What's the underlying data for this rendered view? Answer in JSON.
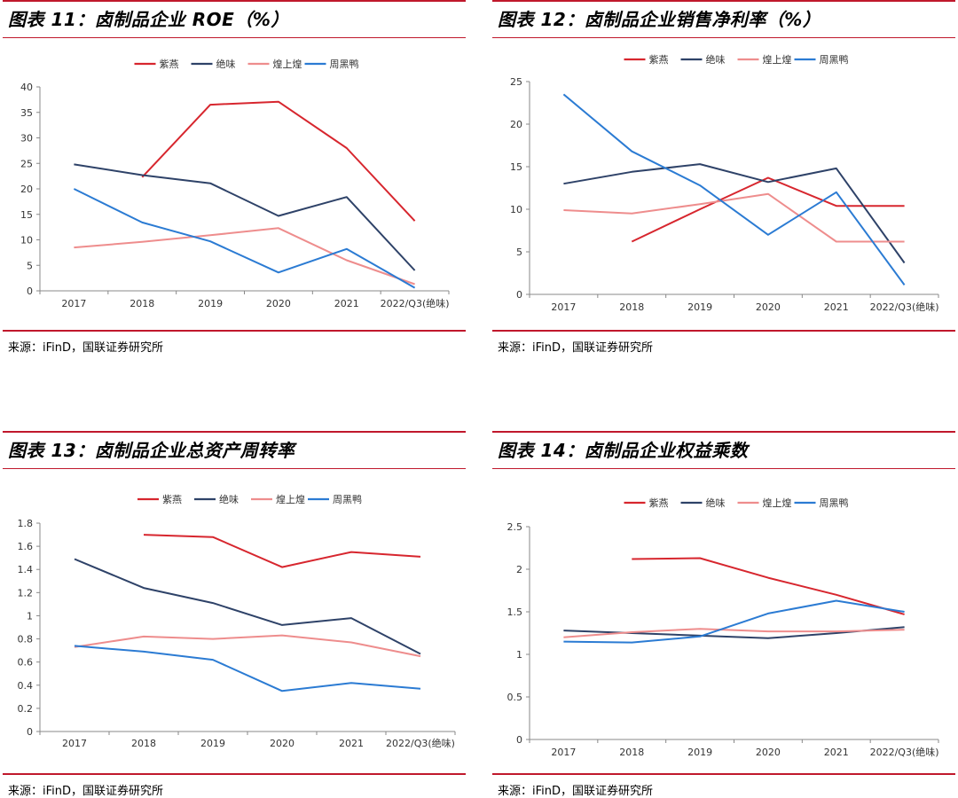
{
  "legend_names": [
    "紫燕",
    "绝味",
    "煌上煌",
    "周黑鸭"
  ],
  "colors": {
    "紫燕": "#d7262e",
    "绝味": "#2e4268",
    "煌上煌": "#ee8d8d",
    "周黑鸭": "#2b7bd3",
    "rule": "#c0182c"
  },
  "categories": [
    "2017",
    "2018",
    "2019",
    "2020",
    "2021",
    "2022/Q3(绝味)"
  ],
  "source_text": "来源：iFinD，国联证券研究所",
  "chart_data": [
    {
      "type": "line",
      "title": "图表 11：卤制品企业 ROE（%）",
      "categories": [
        "2017",
        "2018",
        "2019",
        "2020",
        "2021",
        "2022/Q3(绝味)"
      ],
      "yticks": [
        "0",
        "5",
        "10",
        "15",
        "20",
        "25",
        "30",
        "35",
        "40"
      ],
      "ylim": [
        0,
        40
      ],
      "legend": "top",
      "series": [
        {
          "name": "紫燕",
          "values": [
            null,
            22.3,
            36.5,
            37.1,
            28.0,
            13.7
          ]
        },
        {
          "name": "绝味",
          "values": [
            24.8,
            22.7,
            21.1,
            14.7,
            18.4,
            4.0
          ]
        },
        {
          "name": "煌上煌",
          "values": [
            8.5,
            9.6,
            10.9,
            12.3,
            6.0,
            1.3
          ]
        },
        {
          "name": "周黑鸭",
          "values": [
            20.0,
            13.4,
            9.7,
            3.6,
            8.2,
            0.6
          ]
        }
      ]
    },
    {
      "type": "line",
      "title": "图表 12：卤制品企业销售净利率（%）",
      "categories": [
        "2017",
        "2018",
        "2019",
        "2020",
        "2021",
        "2022/Q3(绝味)"
      ],
      "yticks": [
        "0",
        "5",
        "10",
        "15",
        "20",
        "25"
      ],
      "ylim": [
        0,
        25
      ],
      "legend": "top",
      "series": [
        {
          "name": "紫燕",
          "values": [
            null,
            6.2,
            10.0,
            13.7,
            10.4,
            10.4
          ]
        },
        {
          "name": "绝味",
          "values": [
            13.0,
            14.4,
            15.3,
            13.2,
            14.8,
            3.7
          ]
        },
        {
          "name": "煌上煌",
          "values": [
            9.9,
            9.5,
            10.6,
            11.8,
            6.2,
            6.2
          ]
        },
        {
          "name": "周黑鸭",
          "values": [
            23.5,
            16.8,
            12.8,
            7.0,
            12.0,
            1.1
          ]
        }
      ]
    },
    {
      "type": "line",
      "title": "图表 13：卤制品企业总资产周转率",
      "categories": [
        "2017",
        "2018",
        "2019",
        "2020",
        "2021",
        "2022/Q3(绝味)"
      ],
      "yticks": [
        "0",
        "0.2",
        "0.4",
        "0.6",
        "0.8",
        "1",
        "1.2",
        "1.4",
        "1.6",
        "1.8"
      ],
      "ylim": [
        0,
        1.8
      ],
      "legend": "top",
      "series": [
        {
          "name": "紫燕",
          "values": [
            null,
            1.7,
            1.68,
            1.42,
            1.55,
            1.51
          ]
        },
        {
          "name": "绝味",
          "values": [
            1.49,
            1.24,
            1.11,
            0.92,
            0.98,
            0.67
          ]
        },
        {
          "name": "煌上煌",
          "values": [
            0.73,
            0.82,
            0.8,
            0.83,
            0.77,
            0.65
          ]
        },
        {
          "name": "周黑鸭",
          "values": [
            0.74,
            0.69,
            0.62,
            0.35,
            0.42,
            0.37
          ]
        }
      ]
    },
    {
      "type": "line",
      "title": "图表 14：卤制品企业权益乘数",
      "categories": [
        "2017",
        "2018",
        "2019",
        "2020",
        "2021",
        "2022/Q3(绝味)"
      ],
      "yticks": [
        "0",
        "0.5",
        "1",
        "1.5",
        "2",
        "2.5"
      ],
      "ylim": [
        0,
        2.5
      ],
      "legend": "top",
      "series": [
        {
          "name": "紫燕",
          "values": [
            null,
            2.12,
            2.13,
            1.9,
            1.7,
            1.47
          ]
        },
        {
          "name": "绝味",
          "values": [
            1.28,
            1.25,
            1.22,
            1.19,
            1.25,
            1.32
          ]
        },
        {
          "name": "煌上煌",
          "values": [
            1.2,
            1.26,
            1.3,
            1.27,
            1.27,
            1.29
          ]
        },
        {
          "name": "周黑鸭",
          "values": [
            1.15,
            1.14,
            1.21,
            1.48,
            1.63,
            1.5
          ]
        }
      ]
    }
  ]
}
